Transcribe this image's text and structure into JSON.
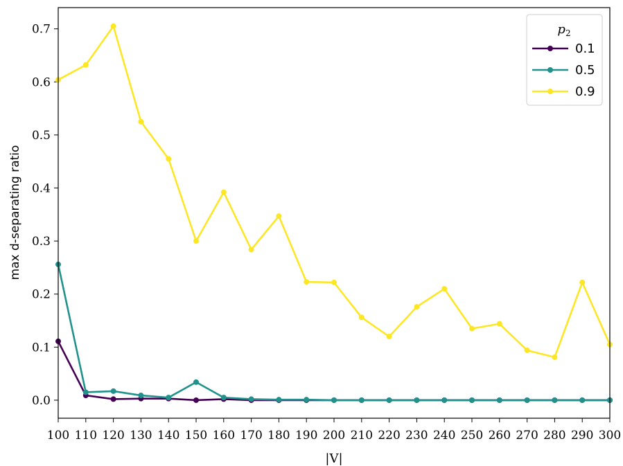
{
  "chart_data": {
    "type": "line",
    "title": "",
    "xlabel": "|V|",
    "ylabel": "max d-separating ratio",
    "x": [
      100,
      110,
      120,
      130,
      140,
      150,
      160,
      170,
      180,
      190,
      200,
      210,
      220,
      230,
      240,
      250,
      260,
      270,
      280,
      290,
      300
    ],
    "xlim": [
      100,
      300
    ],
    "ylim": [
      -0.034,
      0.74
    ],
    "x_ticks": [
      "100",
      "110",
      "120",
      "130",
      "140",
      "150",
      "160",
      "170",
      "180",
      "190",
      "200",
      "210",
      "220",
      "230",
      "240",
      "250",
      "260",
      "270",
      "280",
      "290",
      "300"
    ],
    "y_ticks": [
      "0.0",
      "0.1",
      "0.2",
      "0.3",
      "0.4",
      "0.5",
      "0.6",
      "0.7"
    ],
    "grid": false,
    "legend": {
      "title": "p2",
      "placement": "upper-right"
    },
    "series": [
      {
        "name": "0.1",
        "color": "#440154",
        "values": [
          0.111,
          0.009,
          0.002,
          0.003,
          0.003,
          0.0,
          0.002,
          0.0,
          0.0,
          0.0,
          0.0,
          0.0,
          0.0,
          0.0,
          0.0,
          0.0,
          0.0,
          0.0,
          0.0,
          0.0,
          0.0
        ]
      },
      {
        "name": "0.5",
        "color": "#21918c",
        "values": [
          0.256,
          0.015,
          0.017,
          0.009,
          0.005,
          0.034,
          0.005,
          0.002,
          0.001,
          0.001,
          0.0,
          0.0,
          0.0,
          0.0,
          0.0,
          0.0,
          0.0,
          0.0,
          0.0,
          0.0,
          0.0
        ]
      },
      {
        "name": "0.9",
        "color": "#fde725",
        "values": [
          0.604,
          0.632,
          0.705,
          0.525,
          0.455,
          0.3,
          0.392,
          0.284,
          0.347,
          0.223,
          0.222,
          0.156,
          0.12,
          0.176,
          0.21,
          0.135,
          0.144,
          0.094,
          0.081,
          0.222,
          0.105
        ]
      }
    ]
  }
}
